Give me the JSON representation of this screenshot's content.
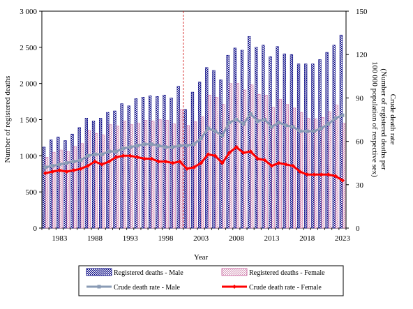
{
  "chart_data": {
    "type": "bar",
    "xlabel": "Year",
    "ylabel_left": "Number of registered deaths",
    "ylabel_right_lines": [
      "Crude death rate",
      "(Number of registered deaths per",
      "100 000 population of respective sex)"
    ],
    "ylim_left": [
      0,
      3000
    ],
    "ylim_right": [
      0,
      150
    ],
    "yticks_left": [
      "0",
      "500",
      "1 000",
      "1 500",
      "2 000",
      "2 500",
      "3 000"
    ],
    "yticks_right": [
      "0",
      "30",
      "60",
      "90",
      "120",
      "150"
    ],
    "xtick_labels": [
      "1983",
      "1988",
      "1993",
      "1998",
      "2003",
      "2008",
      "2013",
      "2018",
      "2023"
    ],
    "x": [
      1981,
      1982,
      1983,
      1984,
      1985,
      1986,
      1987,
      1988,
      1989,
      1990,
      1991,
      1992,
      1993,
      1994,
      1995,
      1996,
      1997,
      1998,
      1999,
      2000,
      2001,
      2002,
      2003,
      2004,
      2005,
      2006,
      2007,
      2008,
      2009,
      2010,
      2011,
      2012,
      2013,
      2014,
      2015,
      2016,
      2017,
      2018,
      2019,
      2020,
      2021,
      2022,
      2023
    ],
    "reference_line_between": [
      2000,
      2001
    ],
    "series": [
      {
        "name": "Registered deaths - Male",
        "kind": "bar",
        "axis": "left",
        "color": "#000080",
        "values": [
          1120,
          1220,
          1260,
          1210,
          1300,
          1390,
          1520,
          1480,
          1520,
          1600,
          1620,
          1720,
          1690,
          1790,
          1810,
          1830,
          1820,
          1840,
          1800,
          1960,
          1640,
          1880,
          2020,
          2220,
          2180,
          2050,
          2390,
          2490,
          2460,
          2650,
          2500,
          2530,
          2370,
          2510,
          2410,
          2400,
          2270,
          2270,
          2270,
          2330,
          2430,
          2530,
          2670
        ]
      },
      {
        "name": "Registered deaths - Female",
        "kind": "bar",
        "axis": "left",
        "color": "#c85a9a",
        "values": [
          980,
          1050,
          1080,
          1060,
          1130,
          1170,
          1350,
          1310,
          1290,
          1430,
          1410,
          1480,
          1430,
          1450,
          1490,
          1480,
          1500,
          1490,
          1440,
          1640,
          1420,
          1470,
          1540,
          1840,
          1810,
          1710,
          2000,
          2000,
          1910,
          1980,
          1850,
          1840,
          1670,
          1780,
          1710,
          1660,
          1600,
          1520,
          1510,
          1530,
          1610,
          1700,
          1450
        ]
      },
      {
        "name": "Crude death rate - Male",
        "kind": "line",
        "axis": "right",
        "color": "#8a9bb5",
        "values": [
          42,
          43,
          44,
          45,
          46,
          47,
          50,
          51,
          51,
          53,
          53,
          55,
          56,
          57,
          58,
          58,
          57,
          56,
          56,
          57,
          57,
          58,
          62,
          69,
          67,
          64,
          73,
          75,
          72,
          79,
          74,
          75,
          70,
          73,
          71,
          70,
          67,
          67,
          67,
          69,
          72,
          76,
          78
        ]
      },
      {
        "name": "Crude death rate - Female",
        "kind": "line",
        "axis": "right",
        "color": "#ff0000",
        "values": [
          38,
          39,
          40,
          39,
          40,
          41,
          43,
          46,
          44,
          46,
          49,
          50,
          50,
          49,
          48,
          48,
          46,
          46,
          45,
          46,
          41,
          42,
          45,
          51,
          50,
          45,
          52,
          56,
          52,
          53,
          48,
          47,
          43,
          45,
          44,
          43,
          39,
          37,
          37,
          37,
          37,
          36,
          33
        ]
      }
    ]
  }
}
